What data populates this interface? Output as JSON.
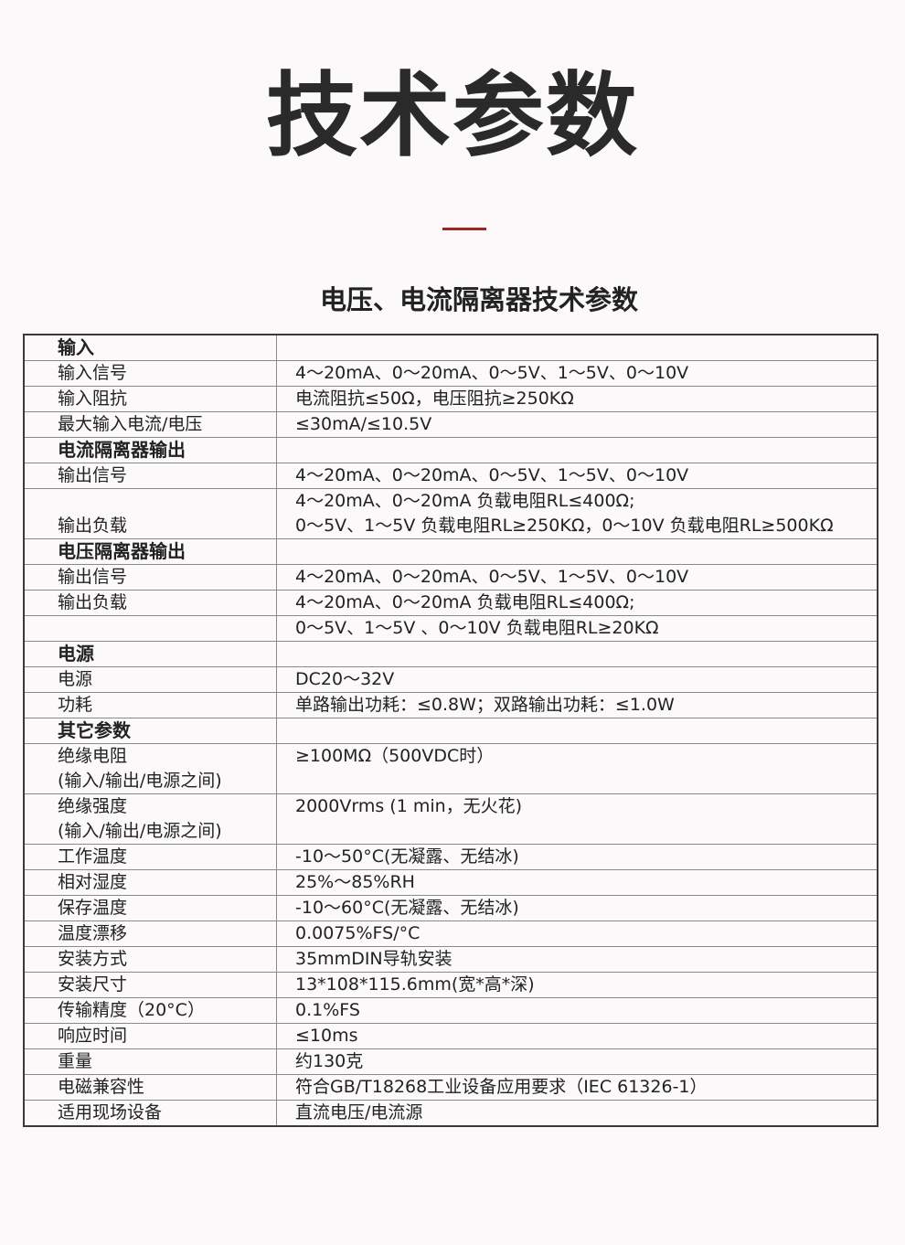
{
  "page_title": "技术参数",
  "accent_color": "#a3241e",
  "subtitle": "电压、电流隔离器技术参数",
  "rows": [
    {
      "type": "section",
      "key": "输入",
      "value": []
    },
    {
      "type": "item",
      "key": "输入信号",
      "value": [
        "4～20mA、0～20mA、0～5V、1～5V、0～10V"
      ]
    },
    {
      "type": "item",
      "key": "输入阻抗",
      "value": [
        "电流阻抗≤50Ω，电压阻抗≥250KΩ"
      ]
    },
    {
      "type": "item",
      "key": "最大输入电流/电压",
      "value": [
        "≤30mA/≤10.5V"
      ]
    },
    {
      "type": "section",
      "key": "电流隔离器输出",
      "value": []
    },
    {
      "type": "item",
      "key": "输出信号",
      "value": [
        "4～20mA、0～20mA、0～5V、1～5V、0～10V"
      ]
    },
    {
      "type": "item",
      "key": "输出负载",
      "value": [
        "4～20mA、0～20mA 负载电阻RL≤400Ω;",
        "0～5V、1～5V 负载电阻RL≥250KΩ，0～10V 负载电阻RL≥500KΩ"
      ]
    },
    {
      "type": "section",
      "key": "电压隔离器输出",
      "value": []
    },
    {
      "type": "item",
      "key": "输出信号",
      "value": [
        "4～20mA、0～20mA、0～5V、1～5V、0～10V"
      ]
    },
    {
      "type": "item",
      "key": "输出负载",
      "value": [
        "4～20mA、0～20mA 负载电阻RL≤400Ω;"
      ]
    },
    {
      "type": "item",
      "key": "",
      "value": [
        "0～5V、1～5V 、0～10V 负载电阻RL≥20KΩ"
      ]
    },
    {
      "type": "section",
      "key": "电源",
      "value": []
    },
    {
      "type": "item",
      "key": "电源",
      "value": [
        "DC20～32V"
      ]
    },
    {
      "type": "item",
      "key": "功耗",
      "value": [
        "单路输出功耗：≤0.8W；双路输出功耗：≤1.0W"
      ]
    },
    {
      "type": "section",
      "key": "其它参数",
      "value": []
    },
    {
      "type": "item",
      "key": "绝缘电阻",
      "key2": "(输入/输出/电源之间)",
      "value": [
        "≥100MΩ（500VDC时）"
      ]
    },
    {
      "type": "item",
      "key": "绝缘强度",
      "key2": "(输入/输出/电源之间)",
      "value": [
        "2000Vrms (1 min，无火花)"
      ]
    },
    {
      "type": "item",
      "key": "工作温度",
      "value": [
        "-10～50°C(无凝露、无结冰)"
      ]
    },
    {
      "type": "item",
      "key": "相对湿度",
      "value": [
        "25%～85%RH"
      ]
    },
    {
      "type": "item",
      "key": "保存温度",
      "value": [
        "-10～60°C(无凝露、无结冰)"
      ]
    },
    {
      "type": "item",
      "key": "温度漂移",
      "value": [
        "0.0075%FS/°C"
      ]
    },
    {
      "type": "item",
      "key": "安装方式",
      "value": [
        "35mmDIN导轨安装"
      ]
    },
    {
      "type": "item",
      "key": "安装尺寸",
      "value": [
        "13*108*115.6mm(宽*高*深)"
      ]
    },
    {
      "type": "item",
      "key": "传输精度（20°C）",
      "value": [
        "0.1%FS"
      ]
    },
    {
      "type": "item",
      "key": "响应时间",
      "value": [
        "≤10ms"
      ]
    },
    {
      "type": "item",
      "key": "重量",
      "value": [
        "约130克"
      ]
    },
    {
      "type": "item",
      "key": "电磁兼容性",
      "value": [
        "符合GB/T18268工业设备应用要求（IEC 61326-1）"
      ]
    },
    {
      "type": "item",
      "key": "适用现场设备",
      "value": [
        "直流电压/电流源"
      ]
    }
  ]
}
